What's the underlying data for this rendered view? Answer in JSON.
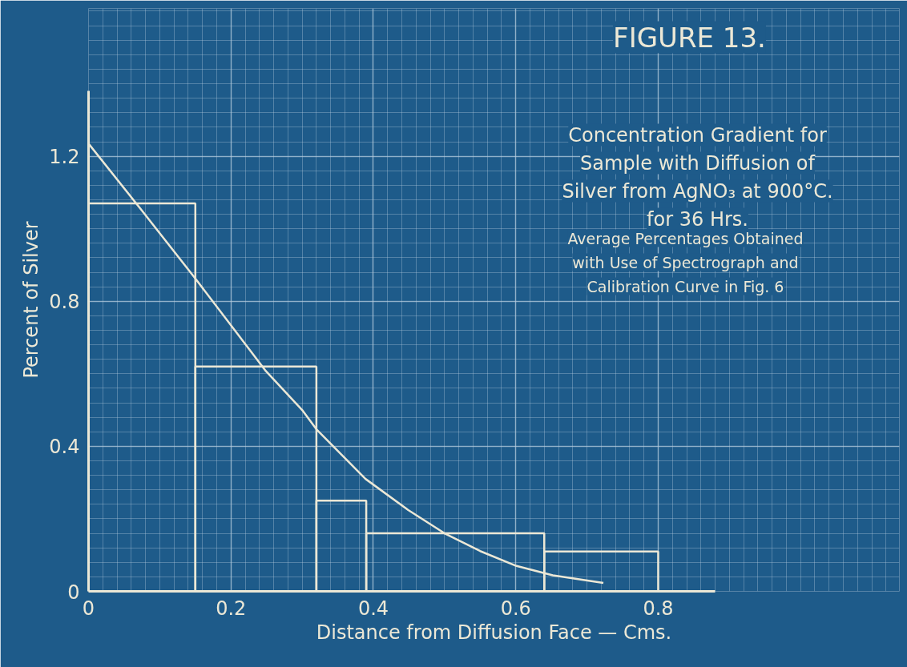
{
  "chart_data": {
    "type": "histogram",
    "title": "FIGURE 13.",
    "subtitle": "Concentration Gradient for Sample with Diffusion of Silver from AgNO₃ at 900°C. for 36 Hrs.",
    "annotations": [
      "Average Percentages Obtained with Use of Spectrograph and Calibration Curve in Fig. 6"
    ],
    "xlabel": "Distance from Diffusion Face — Cms.",
    "ylabel": "Percent of Silver",
    "bins": [
      0,
      0.15,
      0.32,
      0.39,
      0.64,
      0.8
    ],
    "values": [
      1.07,
      0.62,
      0.25,
      0.16,
      0.11
    ],
    "color": "#ece8d6",
    "series": [
      {
        "type": "line",
        "color": "#ece8d6",
        "x": [
          0,
          0.075,
          0.151,
          0.248,
          0.3,
          0.32,
          0.389,
          0.449,
          0.5,
          0.55,
          0.601,
          0.652,
          0.723
        ],
        "values": [
          1.235,
          1.05,
          0.86,
          0.61,
          0.5,
          0.447,
          0.31,
          0.224,
          0.16,
          0.111,
          0.07,
          0.044,
          0.023
        ]
      }
    ],
    "xlim": [
      0,
      0.88
    ],
    "ylim": [
      0,
      1.38
    ],
    "xticks": [
      0,
      0.2,
      0.4,
      0.6,
      0.8
    ],
    "yticks": [
      0,
      0.4,
      0.8,
      1.2
    ],
    "grid": true
  }
}
